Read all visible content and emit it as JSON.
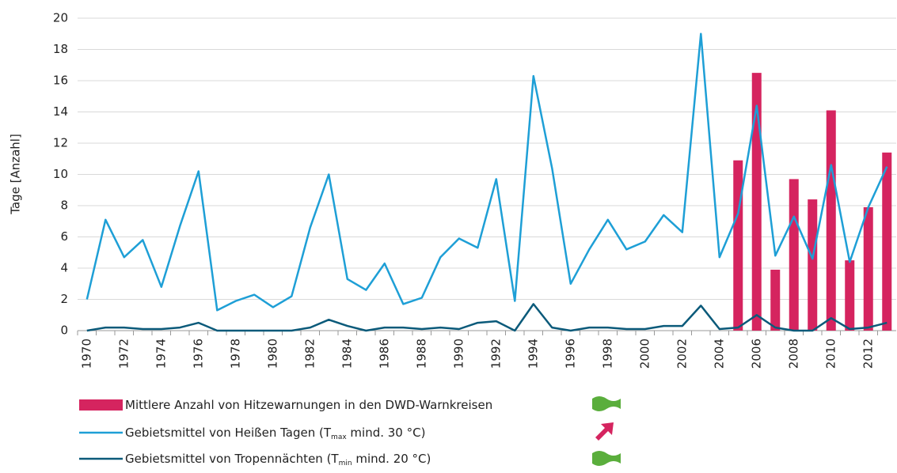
{
  "chart_data": {
    "type": "bar_line",
    "y_label": "Tage [Anzahl]",
    "categories": [
      "1970",
      null,
      "1972",
      null,
      "1974",
      null,
      "1976",
      null,
      "1978",
      null,
      "1980",
      null,
      "1982",
      null,
      "1984",
      null,
      "1986",
      null,
      "1988",
      null,
      "1990",
      null,
      "1992",
      null,
      "1994",
      null,
      "1996",
      null,
      "1998",
      null,
      "2000",
      null,
      "2002",
      null,
      "2004",
      null,
      "2006",
      null,
      "2008",
      null,
      "2010",
      null,
      "2012",
      null
    ],
    "series": [
      {
        "name": [
          "Mittlere Anzahl von Hitzewarnungen in den DWD-Warnkreisen"
        ],
        "type": "bar",
        "color": "#d5245f",
        "values": [
          null,
          null,
          null,
          null,
          null,
          null,
          null,
          null,
          null,
          null,
          null,
          null,
          null,
          null,
          null,
          null,
          null,
          null,
          null,
          null,
          null,
          null,
          null,
          null,
          null,
          null,
          null,
          null,
          null,
          null,
          null,
          null,
          null,
          null,
          null,
          10.9,
          16.5,
          3.9,
          9.7,
          8.4,
          14.1,
          4.5,
          7.9,
          11.4
        ]
      },
      {
        "name": [
          "Gebietsmittel von Heißen Tagen (T",
          "max",
          " mind. 30 °C)"
        ],
        "type": "line",
        "color": "#1e9fd6",
        "values": [
          2.0,
          7.1,
          4.7,
          5.8,
          2.8,
          6.7,
          10.2,
          1.3,
          1.9,
          2.3,
          1.5,
          2.2,
          6.6,
          10.0,
          3.3,
          2.6,
          4.3,
          1.7,
          2.1,
          4.7,
          5.9,
          5.3,
          9.7,
          1.9,
          16.3,
          10.4,
          3.0,
          5.2,
          7.1,
          5.2,
          5.7,
          7.4,
          6.3,
          19.0,
          4.7,
          7.5,
          14.4,
          4.8,
          7.3,
          4.6,
          10.6,
          4.4,
          7.9,
          10.5
        ]
      },
      {
        "name": [
          "Gebietsmittel von Tropennächten (T",
          "min",
          " mind. 20 °C)"
        ],
        "type": "line",
        "color": "#0b5a7a",
        "values": [
          0.0,
          0.2,
          0.2,
          0.1,
          0.1,
          0.2,
          0.5,
          0.0,
          0.0,
          0.0,
          0.0,
          0.0,
          0.2,
          0.7,
          0.3,
          0.0,
          0.2,
          0.2,
          0.1,
          0.2,
          0.1,
          0.5,
          0.6,
          0.0,
          1.7,
          0.2,
          0.0,
          0.2,
          0.2,
          0.1,
          0.1,
          0.3,
          0.3,
          1.6,
          0.1,
          0.2,
          1.0,
          0.2,
          0.0,
          0.0,
          0.8,
          0.1,
          0.2,
          0.5
        ]
      }
    ],
    "ylim": [
      0,
      20
    ],
    "yticks": [
      0,
      2,
      4,
      6,
      8,
      10,
      12,
      14,
      16,
      18,
      20
    ],
    "grid": true
  }
}
